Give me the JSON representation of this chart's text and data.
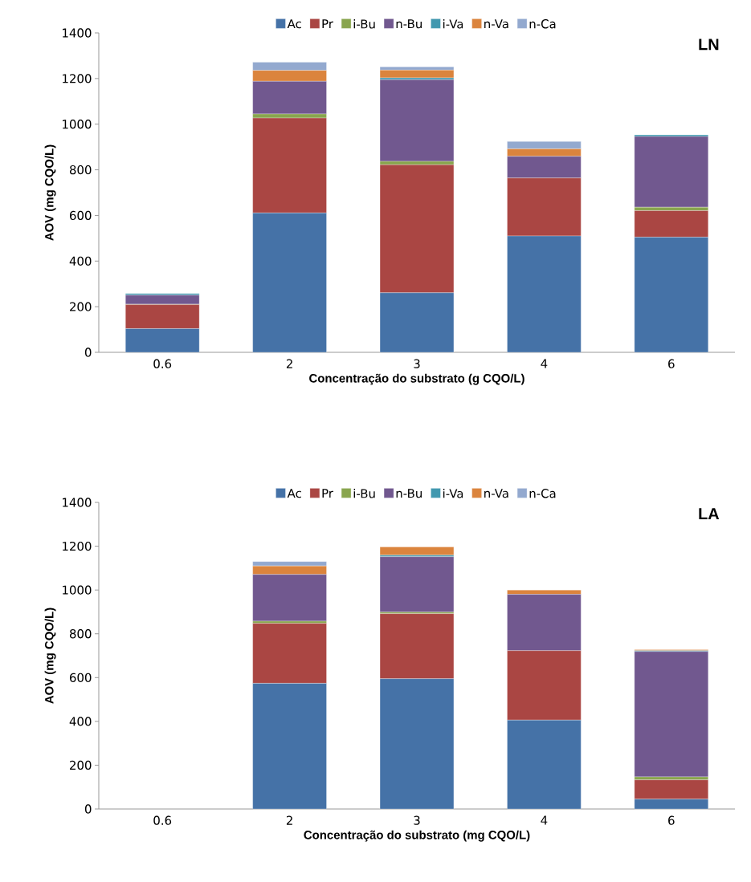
{
  "chart_data": [
    {
      "type": "bar",
      "stacked": true,
      "xlabel": "Concentração do substrato (g CQO/L)",
      "ylabel": "AOV (mg CQO/L)",
      "annotations": [
        "LN"
      ],
      "legend": "top",
      "categories": [
        "0.6",
        "2",
        "3",
        "4",
        "6"
      ],
      "ylim": [
        0,
        1400
      ],
      "yticks": [
        0,
        200,
        400,
        600,
        800,
        1000,
        1200,
        1400
      ],
      "series": [
        {
          "name": "Ac",
          "color": "#4572a7",
          "values": [
            104,
            611,
            261,
            510,
            505
          ]
        },
        {
          "name": "Pr",
          "color": "#aa4643",
          "values": [
            105,
            416,
            561,
            254,
            116
          ]
        },
        {
          "name": "i-Bu",
          "color": "#89a54e",
          "values": [
            2,
            18,
            15,
            null,
            15
          ]
        },
        {
          "name": "n-Bu",
          "color": "#71588f",
          "values": [
            40,
            143,
            358,
            95,
            310
          ]
        },
        {
          "name": "i-Va",
          "color": "#4198af",
          "values": [
            7,
            0,
            8,
            0,
            7
          ]
        },
        {
          "name": "n-Va",
          "color": "#db843d",
          "values": [
            0,
            48,
            34,
            33,
            0
          ]
        },
        {
          "name": "n-Ca",
          "color": "#93a9cf",
          "values": [
            0,
            36,
            14,
            32,
            null
          ]
        }
      ]
    },
    {
      "type": "bar",
      "stacked": true,
      "xlabel": "Concentração do substrato (mg CQO/L)",
      "ylabel": "AOV (mg CQO/L)",
      "annotations": [
        "LA"
      ],
      "legend": "top",
      "categories": [
        "0.6",
        "2",
        "3",
        "4",
        "6"
      ],
      "ylim": [
        0,
        1400
      ],
      "yticks": [
        0,
        200,
        400,
        600,
        800,
        1000,
        1200,
        1400
      ],
      "series": [
        {
          "name": "Ac",
          "color": "#4572a7",
          "values": [
            0,
            574,
            595,
            406,
            45
          ]
        },
        {
          "name": "Pr",
          "color": "#aa4643",
          "values": [
            0,
            274,
            297,
            317,
            88
          ]
        },
        {
          "name": "i-Bu",
          "color": "#89a54e",
          "values": [
            0,
            10,
            7,
            null,
            14
          ]
        },
        {
          "name": "n-Bu",
          "color": "#71588f",
          "values": [
            0,
            213,
            253,
            257,
            572
          ]
        },
        {
          "name": "i-Va",
          "color": "#4198af",
          "values": [
            0,
            0,
            7,
            0,
            4
          ]
        },
        {
          "name": "n-Va",
          "color": "#db843d",
          "values": [
            0,
            39,
            38,
            20,
            5
          ]
        },
        {
          "name": "n-Ca",
          "color": "#93a9cf",
          "values": [
            0,
            20,
            0,
            0,
            0
          ]
        }
      ]
    }
  ]
}
